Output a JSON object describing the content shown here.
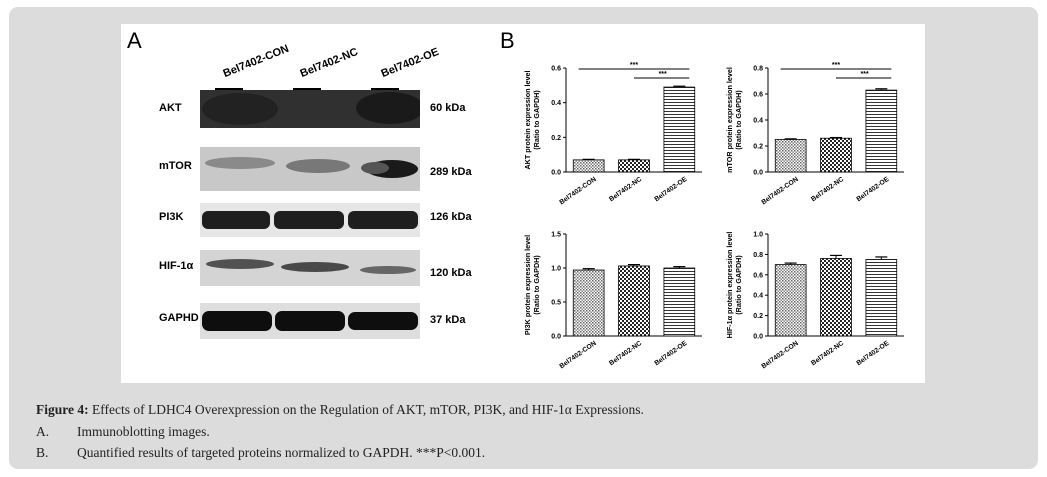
{
  "figure": {
    "panel_a_letter": "A",
    "panel_b_letter": "B",
    "lanes": [
      "Bel7402-CON",
      "Bel7402-NC",
      "Bel7402-OE"
    ],
    "blots": [
      {
        "protein": "AKT",
        "size": "60 kDa"
      },
      {
        "protein": "mTOR",
        "size": "289 kDa"
      },
      {
        "protein": "PI3K",
        "size": "126 kDa"
      },
      {
        "protein": "HIF-1α",
        "size": "120 kDa"
      },
      {
        "protein": "GAPHD",
        "size": "37 kDa"
      }
    ]
  },
  "caption": {
    "title_bold": "Figure 4:",
    "title_rest": " Effects of LDHC4 Overexpression on the Regulation of AKT, mTOR, PI3K, and HIF-1α Expressions.",
    "items": [
      {
        "letter": "A.",
        "text": "Immunoblotting images."
      },
      {
        "letter": "B.",
        "text": "Quantified results of targeted proteins normalized to GAPDH. ***P<0.001."
      }
    ]
  },
  "chart_data": [
    {
      "type": "bar",
      "ylabel": "AKT protein expression level\n(Ratio to GAPDH)",
      "categories": [
        "Bel7402-CON",
        "Bel7402-NC",
        "Bel7402-OE"
      ],
      "values": [
        0.07,
        0.07,
        0.49
      ],
      "errors": [
        0.003,
        0.003,
        0.005
      ],
      "ylim": [
        0,
        0.6
      ],
      "yticks": [
        "0.0",
        "0.2",
        "0.4",
        "0.6"
      ],
      "patterns": [
        "dots",
        "check",
        "hlines"
      ],
      "annotations": [
        {
          "from": 0,
          "to": 2,
          "label": "***"
        },
        {
          "from": 1,
          "to": 2,
          "label": "***"
        }
      ]
    },
    {
      "type": "bar",
      "ylabel": "mTOR protein expression level\n(Ratio to GAPDH)",
      "categories": [
        "Bel7402-CON",
        "Bel7402-NC",
        "Bel7402-OE"
      ],
      "values": [
        0.25,
        0.26,
        0.63
      ],
      "errors": [
        0.005,
        0.005,
        0.01
      ],
      "ylim": [
        0,
        0.8
      ],
      "yticks": [
        "0.0",
        "0.2",
        "0.4",
        "0.6",
        "0.8"
      ],
      "patterns": [
        "dots",
        "check",
        "hlines"
      ],
      "annotations": [
        {
          "from": 0,
          "to": 2,
          "label": "***"
        },
        {
          "from": 1,
          "to": 2,
          "label": "***"
        }
      ]
    },
    {
      "type": "bar",
      "ylabel": "PI3K protein expression level\n(Ratio to GAPDH)",
      "categories": [
        "Bel7402-CON",
        "Bel7402-NC",
        "Bel7402-OE"
      ],
      "values": [
        0.97,
        1.03,
        1.0
      ],
      "errors": [
        0.02,
        0.02,
        0.02
      ],
      "ylim": [
        0,
        1.5
      ],
      "yticks": [
        "0.0",
        "0.5",
        "1.0",
        "1.5"
      ],
      "patterns": [
        "dots",
        "check",
        "hlines"
      ],
      "annotations": []
    },
    {
      "type": "bar",
      "ylabel": "HIF-1α protein expression level\n(Ratio to GAPDH)",
      "categories": [
        "Bel7402-CON",
        "Bel7402-NC",
        "Bel7402-OE"
      ],
      "values": [
        0.7,
        0.76,
        0.75
      ],
      "errors": [
        0.015,
        0.03,
        0.025
      ],
      "ylim": [
        0,
        1.0
      ],
      "yticks": [
        "0.0",
        "0.2",
        "0.4",
        "0.6",
        "0.8",
        "1.0"
      ],
      "patterns": [
        "dots",
        "check",
        "hlines"
      ],
      "annotations": []
    }
  ]
}
